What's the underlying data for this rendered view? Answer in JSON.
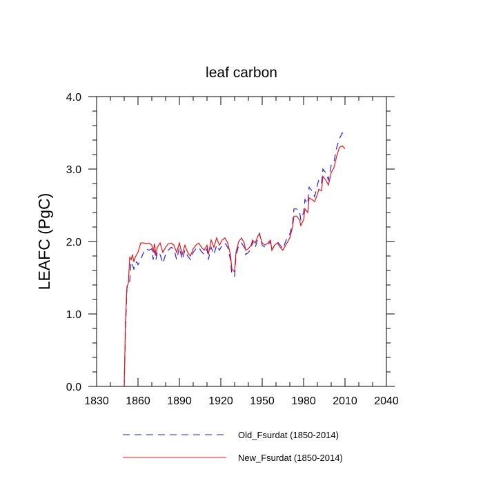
{
  "chart_data": {
    "type": "line",
    "title": "leaf carbon",
    "xlabel": "",
    "ylabel": "LEAFC  (PgC)",
    "xlim": [
      1830,
      2040
    ],
    "ylim": [
      0.0,
      4.0
    ],
    "xticks": [
      1830,
      1860,
      1890,
      1920,
      1950,
      1980,
      2010,
      2040
    ],
    "yticks": [
      0.0,
      1.0,
      2.0,
      3.0,
      4.0
    ],
    "ytick_labels": [
      "0.0",
      "1.0",
      "2.0",
      "3.0",
      "4.0"
    ],
    "series": [
      {
        "name": "Old_Fsurdat (1850-2014)",
        "color": "#2222ee",
        "style": "dashed",
        "points": [
          [
            1850,
            0.0
          ],
          [
            1851,
            0.8
          ],
          [
            1852,
            1.35
          ],
          [
            1853,
            1.45
          ],
          [
            1854,
            1.45
          ],
          [
            1855,
            1.72
          ],
          [
            1856,
            1.68
          ],
          [
            1857,
            1.62
          ],
          [
            1858,
            1.7
          ],
          [
            1859,
            1.72
          ],
          [
            1860,
            1.68
          ],
          [
            1862,
            1.75
          ],
          [
            1864,
            1.85
          ],
          [
            1866,
            1.9
          ],
          [
            1868,
            1.88
          ],
          [
            1870,
            1.9
          ],
          [
            1871,
            1.75
          ],
          [
            1872,
            1.88
          ],
          [
            1873,
            1.75
          ],
          [
            1874,
            1.86
          ],
          [
            1876,
            1.82
          ],
          [
            1878,
            1.7
          ],
          [
            1880,
            1.82
          ],
          [
            1882,
            1.88
          ],
          [
            1884,
            1.92
          ],
          [
            1886,
            1.9
          ],
          [
            1888,
            1.75
          ],
          [
            1890,
            1.92
          ],
          [
            1892,
            1.75
          ],
          [
            1894,
            1.88
          ],
          [
            1896,
            1.8
          ],
          [
            1898,
            1.75
          ],
          [
            1900,
            1.85
          ],
          [
            1902,
            1.9
          ],
          [
            1904,
            1.92
          ],
          [
            1906,
            1.86
          ],
          [
            1908,
            1.82
          ],
          [
            1910,
            1.9
          ],
          [
            1911,
            1.75
          ],
          [
            1913,
            1.92
          ],
          [
            1915,
            1.82
          ],
          [
            1917,
            1.95
          ],
          [
            1919,
            1.88
          ],
          [
            1921,
            1.95
          ],
          [
            1923,
            1.98
          ],
          [
            1925,
            1.92
          ],
          [
            1927,
            1.75
          ],
          [
            1928,
            1.55
          ],
          [
            1930,
            1.52
          ],
          [
            1931,
            1.8
          ],
          [
            1933,
            1.95
          ],
          [
            1935,
            1.98
          ],
          [
            1937,
            1.92
          ],
          [
            1938,
            1.82
          ],
          [
            1940,
            1.85
          ],
          [
            1942,
            1.9
          ],
          [
            1943,
            2.0
          ],
          [
            1945,
            1.92
          ],
          [
            1947,
            2.05
          ],
          [
            1948,
            2.12
          ],
          [
            1950,
            1.95
          ],
          [
            1952,
            1.92
          ],
          [
            1954,
            1.95
          ],
          [
            1956,
            2.0
          ],
          [
            1957,
            1.88
          ],
          [
            1959,
            1.95
          ],
          [
            1961,
            2.0
          ],
          [
            1963,
            1.95
          ],
          [
            1965,
            1.9
          ],
          [
            1967,
            2.0
          ],
          [
            1968,
            2.05
          ],
          [
            1970,
            2.1
          ],
          [
            1972,
            2.25
          ],
          [
            1973,
            2.45
          ],
          [
            1975,
            2.45
          ],
          [
            1977,
            2.42
          ],
          [
            1978,
            2.3
          ],
          [
            1980,
            2.4
          ],
          [
            1981,
            2.58
          ],
          [
            1983,
            2.52
          ],
          [
            1984,
            2.75
          ],
          [
            1986,
            2.7
          ],
          [
            1988,
            2.62
          ],
          [
            1990,
            2.78
          ],
          [
            1991,
            2.85
          ],
          [
            1993,
            2.8
          ],
          [
            1994,
            3.0
          ],
          [
            1996,
            2.95
          ],
          [
            1998,
            2.85
          ],
          [
            2000,
            3.05
          ],
          [
            2002,
            3.1
          ],
          [
            2004,
            3.3
          ],
          [
            2006,
            3.42
          ],
          [
            2008,
            3.5
          ],
          [
            2010,
            3.45
          ]
        ]
      },
      {
        "name": "New_Fsurdat (1850-2014)",
        "color": "#ee1111",
        "style": "solid",
        "points": [
          [
            1850,
            0.0
          ],
          [
            1851,
            0.95
          ],
          [
            1852,
            1.38
          ],
          [
            1853,
            1.42
          ],
          [
            1854,
            1.78
          ],
          [
            1855,
            1.75
          ],
          [
            1856,
            1.82
          ],
          [
            1857,
            1.72
          ],
          [
            1858,
            1.78
          ],
          [
            1859,
            1.82
          ],
          [
            1860,
            1.85
          ],
          [
            1862,
            1.98
          ],
          [
            1864,
            1.98
          ],
          [
            1866,
            1.97
          ],
          [
            1868,
            1.98
          ],
          [
            1870,
            1.95
          ],
          [
            1871,
            1.85
          ],
          [
            1872,
            1.97
          ],
          [
            1873,
            1.8
          ],
          [
            1874,
            1.92
          ],
          [
            1876,
            1.98
          ],
          [
            1878,
            1.85
          ],
          [
            1880,
            1.92
          ],
          [
            1882,
            1.97
          ],
          [
            1884,
            1.98
          ],
          [
            1886,
            1.95
          ],
          [
            1888,
            1.85
          ],
          [
            1890,
            1.98
          ],
          [
            1892,
            1.82
          ],
          [
            1894,
            1.95
          ],
          [
            1896,
            1.85
          ],
          [
            1898,
            1.8
          ],
          [
            1900,
            1.9
          ],
          [
            1902,
            1.95
          ],
          [
            1904,
            1.98
          ],
          [
            1906,
            1.92
          ],
          [
            1908,
            1.88
          ],
          [
            1910,
            1.95
          ],
          [
            1911,
            1.82
          ],
          [
            1913,
            2.02
          ],
          [
            1915,
            1.92
          ],
          [
            1917,
            2.05
          ],
          [
            1919,
            1.95
          ],
          [
            1921,
            2.02
          ],
          [
            1923,
            2.05
          ],
          [
            1925,
            1.98
          ],
          [
            1927,
            1.82
          ],
          [
            1928,
            1.62
          ],
          [
            1930,
            1.58
          ],
          [
            1931,
            1.85
          ],
          [
            1933,
            2.0
          ],
          [
            1935,
            2.05
          ],
          [
            1937,
            1.98
          ],
          [
            1938,
            1.88
          ],
          [
            1940,
            1.9
          ],
          [
            1942,
            1.95
          ],
          [
            1943,
            2.02
          ],
          [
            1945,
            1.98
          ],
          [
            1947,
            2.08
          ],
          [
            1948,
            2.1
          ],
          [
            1950,
            1.98
          ],
          [
            1952,
            1.95
          ],
          [
            1954,
            1.98
          ],
          [
            1956,
            2.02
          ],
          [
            1957,
            1.88
          ],
          [
            1959,
            1.95
          ],
          [
            1961,
            1.98
          ],
          [
            1963,
            1.92
          ],
          [
            1965,
            1.88
          ],
          [
            1967,
            1.95
          ],
          [
            1968,
            1.98
          ],
          [
            1970,
            2.05
          ],
          [
            1972,
            2.2
          ],
          [
            1973,
            2.35
          ],
          [
            1975,
            2.35
          ],
          [
            1977,
            2.3
          ],
          [
            1978,
            2.22
          ],
          [
            1980,
            2.3
          ],
          [
            1981,
            2.45
          ],
          [
            1983,
            2.4
          ],
          [
            1984,
            2.6
          ],
          [
            1986,
            2.58
          ],
          [
            1988,
            2.55
          ],
          [
            1990,
            2.65
          ],
          [
            1991,
            2.72
          ],
          [
            1993,
            2.7
          ],
          [
            1994,
            2.9
          ],
          [
            1996,
            2.85
          ],
          [
            1998,
            2.78
          ],
          [
            2000,
            2.95
          ],
          [
            2002,
            3.02
          ],
          [
            2004,
            3.18
          ],
          [
            2006,
            3.3
          ],
          [
            2008,
            3.32
          ],
          [
            2010,
            3.28
          ]
        ]
      }
    ],
    "legend": [
      {
        "label": "Old_Fsurdat (1850-2014)",
        "style": "dashed",
        "color": "#2222ee"
      },
      {
        "label": "New_Fsurdat (1850-2014)",
        "style": "solid",
        "color": "#ee1111"
      }
    ],
    "legend_position": "bottom",
    "grid": false
  }
}
